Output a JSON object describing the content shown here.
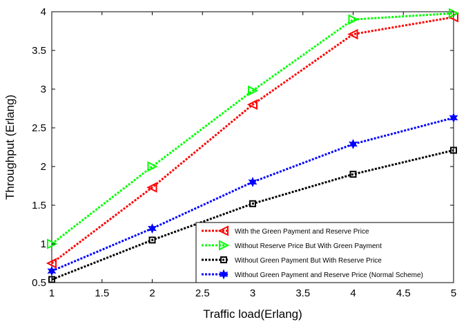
{
  "chart_data": {
    "type": "line",
    "xlabel": "Traffic load(Erlang)",
    "ylabel": "Throughput (Erlang)",
    "xlim": [
      1,
      5
    ],
    "ylim": [
      0.5,
      4
    ],
    "x_ticks": [
      "1",
      "1.5",
      "2",
      "2.5",
      "3",
      "3.5",
      "4",
      "4.5",
      "5"
    ],
    "y_ticks": [
      "0.5",
      "1",
      "1.5",
      "2",
      "2.5",
      "3",
      "3.5",
      "4"
    ],
    "grid": false,
    "legend_position": "bottom-right",
    "x": [
      1,
      2,
      3,
      4,
      5
    ],
    "series": [
      {
        "name": "With the Green Payment and Reserve Price",
        "values": [
          0.75,
          1.73,
          2.8,
          3.71,
          3.93
        ],
        "color": "#ff0000",
        "marker": "triangle-left"
      },
      {
        "name": " Without Reserve Price But With Green Payment",
        "values": [
          1.0,
          2.0,
          2.98,
          3.9,
          3.98
        ],
        "color": "#00ff00",
        "marker": "triangle-right"
      },
      {
        "name": "Without Green Payment But With Reserve Price",
        "values": [
          0.54,
          1.05,
          1.52,
          1.9,
          2.21
        ],
        "color": "#000000",
        "marker": "square"
      },
      {
        "name": "Without Green Payment and Reserve Price (Normal Scheme)",
        "values": [
          0.65,
          1.2,
          1.8,
          2.29,
          2.63
        ],
        "color": "#0000ff",
        "marker": "star"
      }
    ]
  }
}
